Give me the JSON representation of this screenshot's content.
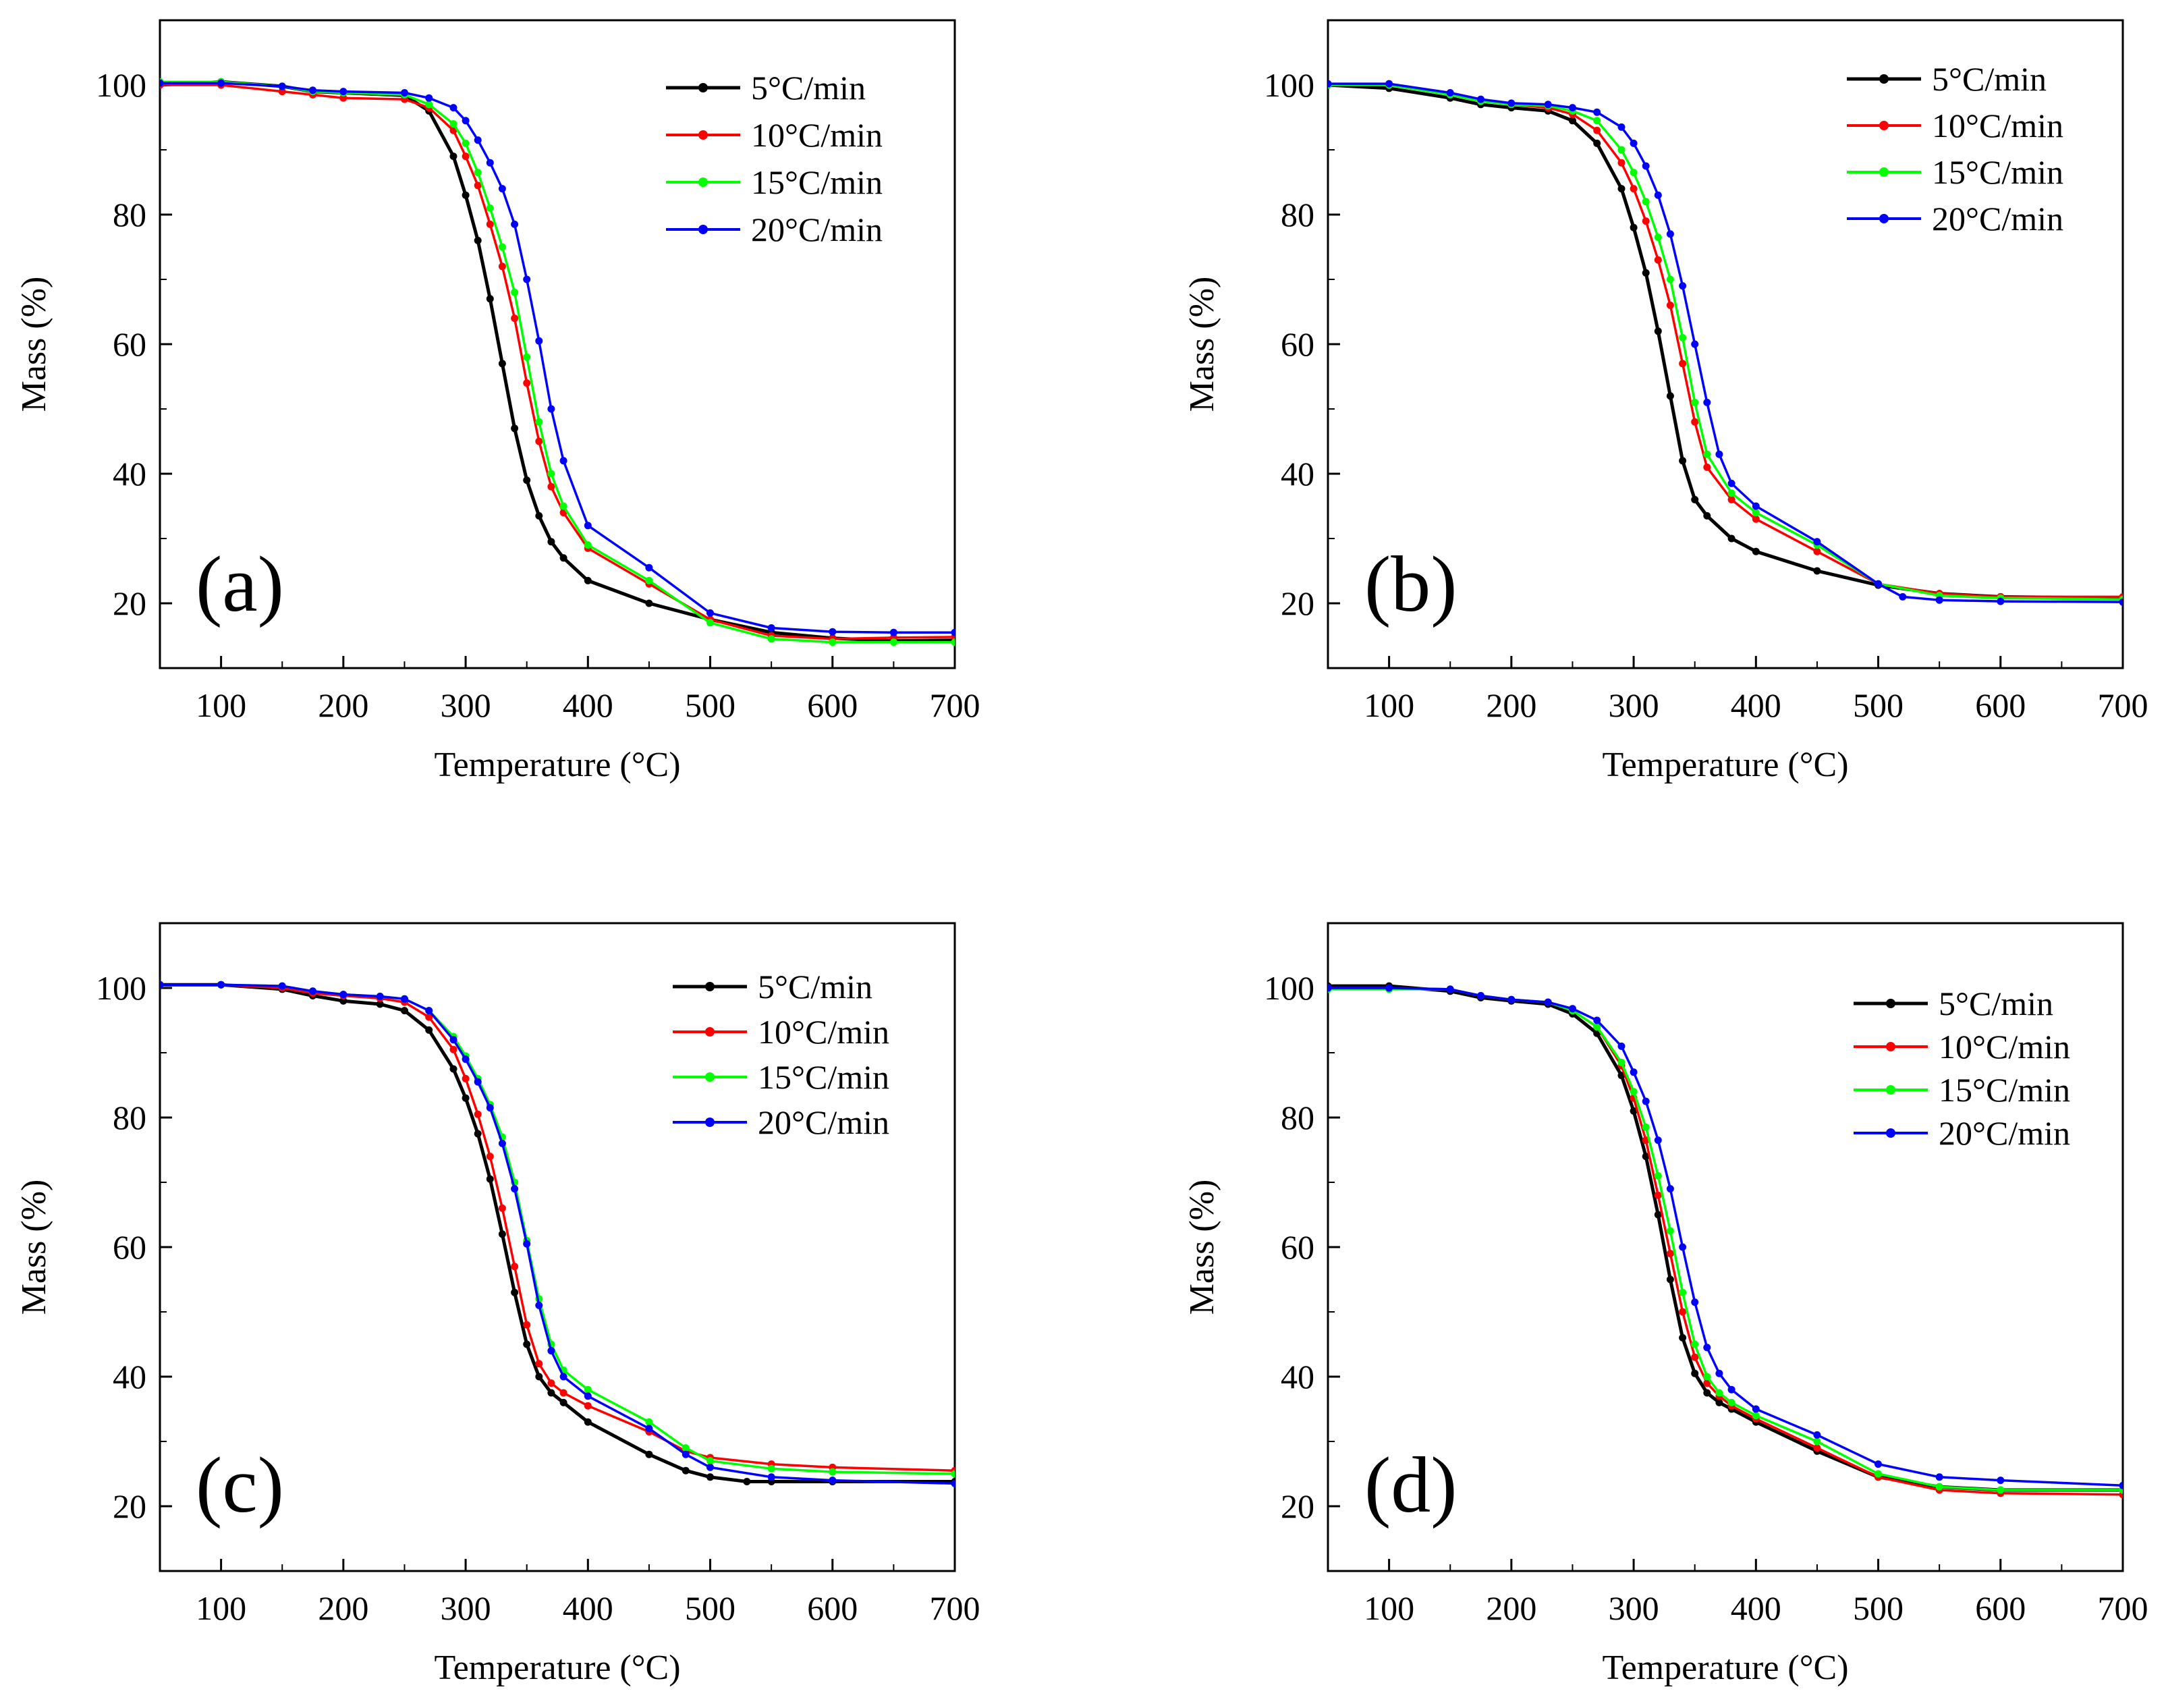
{
  "figure": {
    "panels": [
      "a",
      "b",
      "c",
      "d"
    ]
  },
  "chart_data": [
    {
      "panel_label": "(a)",
      "type": "line",
      "xlabel": "Temperature (°C)",
      "ylabel": "Mass (%)",
      "xlim": [
        50,
        700
      ],
      "ylim": [
        10,
        110
      ],
      "xticks": [
        "100",
        "200",
        "300",
        "400",
        "500",
        "600",
        "700"
      ],
      "yticks": [
        "20",
        "40",
        "60",
        "80",
        "100"
      ],
      "legend_position": "top-right",
      "series": [
        {
          "name": "5°C/min",
          "color": "#000000",
          "x": [
            50,
            100,
            150,
            175,
            200,
            250,
            270,
            290,
            300,
            310,
            320,
            330,
            340,
            350,
            360,
            370,
            380,
            400,
            450,
            500,
            550,
            600,
            650,
            700
          ],
          "y": [
            100,
            100.5,
            99.8,
            99,
            98.8,
            98.4,
            96,
            89,
            83,
            76,
            67,
            57,
            47,
            39,
            33.5,
            29.5,
            27,
            23.5,
            20,
            17.5,
            15.5,
            14.6,
            14.2,
            14.3
          ]
        },
        {
          "name": "10°C/min",
          "color": "#ff0000",
          "x": [
            50,
            100,
            150,
            175,
            200,
            250,
            270,
            290,
            300,
            310,
            320,
            330,
            340,
            350,
            360,
            370,
            380,
            400,
            450,
            500,
            550,
            600,
            650,
            700
          ],
          "y": [
            100,
            100,
            99,
            98.5,
            98,
            97.8,
            96.5,
            93,
            89,
            84.5,
            78.5,
            72,
            64,
            54,
            45,
            38,
            34,
            28.5,
            23,
            17.5,
            15,
            14.5,
            14.7,
            14.8
          ]
        },
        {
          "name": "15°C/min",
          "color": "#00ff00",
          "x": [
            50,
            100,
            150,
            175,
            200,
            250,
            270,
            290,
            300,
            310,
            320,
            330,
            340,
            350,
            360,
            370,
            380,
            400,
            450,
            500,
            550,
            600,
            650,
            700
          ],
          "y": [
            100.5,
            100.5,
            99.8,
            99,
            98.8,
            98.5,
            97,
            94,
            91,
            86.5,
            81,
            75,
            68,
            58,
            48,
            40,
            35,
            29,
            23.5,
            17,
            14.5,
            14,
            14,
            14
          ]
        },
        {
          "name": "20°C/min",
          "color": "#0000ff",
          "x": [
            50,
            100,
            150,
            175,
            200,
            250,
            270,
            290,
            300,
            310,
            320,
            330,
            340,
            350,
            360,
            370,
            380,
            400,
            450,
            500,
            550,
            600,
            650,
            700
          ],
          "y": [
            100.3,
            100.3,
            99.8,
            99.2,
            99,
            98.8,
            98,
            96.5,
            94.5,
            91.5,
            88,
            84,
            78.5,
            70,
            60.5,
            50,
            42,
            32,
            25.5,
            18.5,
            16.2,
            15.6,
            15.5,
            15.5
          ]
        }
      ]
    },
    {
      "panel_label": "(b)",
      "type": "line",
      "xlabel": "Temperature (°C)",
      "ylabel": "Mass (%)",
      "xlim": [
        50,
        700
      ],
      "ylim": [
        10,
        110
      ],
      "xticks": [
        "100",
        "200",
        "300",
        "400",
        "500",
        "600",
        "700"
      ],
      "yticks": [
        "20",
        "40",
        "60",
        "80",
        "100"
      ],
      "legend_position": "top-right",
      "series": [
        {
          "name": "5°C/min",
          "color": "#000000",
          "x": [
            50,
            100,
            150,
            175,
            200,
            230,
            250,
            270,
            290,
            300,
            310,
            320,
            330,
            340,
            350,
            360,
            380,
            400,
            450,
            500,
            550,
            600,
            700
          ],
          "y": [
            100,
            99.5,
            98,
            97,
            96.5,
            96,
            94.5,
            91,
            84,
            78,
            71,
            62,
            52,
            42,
            36,
            33.5,
            30,
            28,
            25,
            22.8,
            21.5,
            21,
            20.8
          ]
        },
        {
          "name": "10°C/min",
          "color": "#ff0000",
          "x": [
            50,
            100,
            150,
            175,
            200,
            230,
            250,
            270,
            290,
            300,
            310,
            320,
            330,
            340,
            350,
            360,
            380,
            400,
            450,
            500,
            550,
            600,
            700
          ],
          "y": [
            100,
            100,
            98.5,
            97.5,
            97,
            96.5,
            95.5,
            93,
            88,
            84,
            79,
            73,
            66,
            57,
            48,
            41,
            36,
            33,
            28,
            23,
            21.5,
            21,
            21
          ]
        },
        {
          "name": "15°C/min",
          "color": "#00ff00",
          "x": [
            50,
            100,
            150,
            175,
            200,
            230,
            250,
            270,
            290,
            300,
            310,
            320,
            330,
            340,
            350,
            360,
            380,
            400,
            450,
            500,
            550,
            600,
            700
          ],
          "y": [
            100,
            100,
            98.5,
            97.5,
            97,
            96.8,
            96,
            94.5,
            90,
            86.5,
            82,
            76.5,
            70,
            61,
            51,
            43,
            37,
            34,
            29,
            23,
            21.2,
            20.8,
            20.6
          ]
        },
        {
          "name": "20°C/min",
          "color": "#0000ff",
          "x": [
            50,
            100,
            150,
            175,
            200,
            230,
            250,
            270,
            290,
            300,
            310,
            320,
            330,
            340,
            350,
            360,
            370,
            380,
            400,
            450,
            500,
            520,
            550,
            600,
            700
          ],
          "y": [
            100.2,
            100.2,
            98.8,
            97.8,
            97.2,
            97,
            96.5,
            95.8,
            93.5,
            91,
            87.5,
            83,
            77,
            69,
            60,
            51,
            43,
            38.5,
            35,
            29.5,
            23,
            21,
            20.5,
            20.3,
            20.2
          ]
        }
      ]
    },
    {
      "panel_label": "(c)",
      "type": "line",
      "xlabel": "Temperature (°C)",
      "ylabel": "Mass (%)",
      "xlim": [
        50,
        700
      ],
      "ylim": [
        10,
        110
      ],
      "xticks": [
        "100",
        "200",
        "300",
        "400",
        "500",
        "600",
        "700"
      ],
      "yticks": [
        "20",
        "40",
        "60",
        "80",
        "100"
      ],
      "legend_position": "top-right",
      "series": [
        {
          "name": "5°C/min",
          "color": "#000000",
          "x": [
            50,
            100,
            150,
            175,
            200,
            230,
            250,
            270,
            290,
            300,
            310,
            320,
            330,
            340,
            350,
            360,
            370,
            380,
            400,
            450,
            480,
            500,
            530,
            550,
            600,
            700
          ],
          "y": [
            100.5,
            100.5,
            99.8,
            98.8,
            98,
            97.5,
            96.5,
            93.5,
            87.5,
            83,
            77.5,
            70.5,
            62,
            53,
            45,
            40,
            37.5,
            36,
            33,
            28,
            25.5,
            24.5,
            23.8,
            23.8,
            23.8,
            23.8
          ]
        },
        {
          "name": "10°C/min",
          "color": "#ff0000",
          "x": [
            50,
            100,
            150,
            175,
            200,
            230,
            250,
            270,
            290,
            300,
            310,
            320,
            330,
            340,
            350,
            360,
            370,
            380,
            400,
            450,
            480,
            500,
            550,
            600,
            700
          ],
          "y": [
            100.5,
            100.5,
            100,
            99.2,
            98.8,
            98.4,
            97.8,
            95.5,
            90.5,
            86,
            80.5,
            74,
            66,
            57,
            48,
            42,
            39,
            37.5,
            35.5,
            31.5,
            28.5,
            27.5,
            26.5,
            26,
            25.5
          ]
        },
        {
          "name": "15°C/min",
          "color": "#00ff00",
          "x": [
            50,
            100,
            150,
            175,
            200,
            230,
            250,
            270,
            290,
            300,
            310,
            320,
            330,
            340,
            350,
            360,
            370,
            380,
            400,
            450,
            480,
            500,
            550,
            600,
            700
          ],
          "y": [
            100.5,
            100.5,
            100.3,
            99.5,
            99,
            98.7,
            98.3,
            96.5,
            92.5,
            89.5,
            86,
            82,
            77,
            70,
            61,
            52,
            45,
            41,
            38,
            33,
            29,
            27,
            25.8,
            25.3,
            25
          ]
        },
        {
          "name": "20°C/min",
          "color": "#0000ff",
          "x": [
            50,
            100,
            150,
            175,
            200,
            230,
            250,
            270,
            290,
            300,
            310,
            320,
            330,
            340,
            350,
            360,
            370,
            380,
            400,
            450,
            480,
            500,
            550,
            600,
            700
          ],
          "y": [
            100.5,
            100.5,
            100.3,
            99.5,
            99,
            98.7,
            98.3,
            96.5,
            92,
            89,
            85.5,
            81.5,
            76,
            69,
            60.5,
            51,
            44,
            40,
            37,
            32,
            28,
            26,
            24.5,
            24,
            23.5
          ]
        }
      ]
    },
    {
      "panel_label": "(d)",
      "type": "line",
      "xlabel": "Temperature (°C)",
      "ylabel": "Mass (%)",
      "xlim": [
        50,
        700
      ],
      "ylim": [
        10,
        110
      ],
      "xticks": [
        "100",
        "200",
        "300",
        "400",
        "500",
        "600",
        "700"
      ],
      "yticks": [
        "20",
        "40",
        "60",
        "80",
        "100"
      ],
      "legend_position": "top-right",
      "series": [
        {
          "name": "5°C/min",
          "color": "#000000",
          "x": [
            50,
            100,
            150,
            175,
            200,
            230,
            250,
            270,
            290,
            300,
            310,
            320,
            330,
            340,
            350,
            360,
            370,
            380,
            400,
            450,
            500,
            550,
            600,
            700
          ],
          "y": [
            100.3,
            100.3,
            99.5,
            98.5,
            98,
            97.5,
            96,
            93,
            86.5,
            81,
            74,
            65,
            55,
            46,
            40.5,
            37.5,
            36,
            35,
            33,
            28.5,
            24.5,
            23,
            22.5,
            22.5
          ]
        },
        {
          "name": "10°C/min",
          "color": "#ff0000",
          "x": [
            50,
            100,
            150,
            175,
            200,
            230,
            250,
            270,
            290,
            300,
            310,
            320,
            330,
            340,
            350,
            360,
            370,
            380,
            400,
            450,
            500,
            550,
            600,
            700
          ],
          "y": [
            100,
            100,
            99.8,
            98.8,
            98.2,
            97.8,
            96.5,
            94,
            88,
            83,
            76.5,
            68,
            59,
            50,
            43,
            39,
            37,
            35.5,
            33.5,
            29,
            24.5,
            22.5,
            22,
            21.8
          ]
        },
        {
          "name": "15°C/min",
          "color": "#00ff00",
          "x": [
            50,
            100,
            150,
            175,
            200,
            230,
            250,
            270,
            290,
            300,
            310,
            320,
            330,
            340,
            350,
            360,
            370,
            380,
            400,
            450,
            500,
            550,
            600,
            700
          ],
          "y": [
            99.8,
            99.8,
            99.8,
            98.8,
            98.2,
            97.8,
            96.5,
            94,
            88.5,
            84,
            78.5,
            71,
            62.5,
            53,
            45,
            40,
            37.5,
            36,
            34,
            30,
            25,
            23,
            22.5,
            22.5
          ]
        },
        {
          "name": "20°C/min",
          "color": "#0000ff",
          "x": [
            50,
            100,
            150,
            175,
            200,
            230,
            250,
            270,
            290,
            300,
            310,
            320,
            330,
            340,
            350,
            360,
            370,
            380,
            400,
            450,
            500,
            550,
            600,
            700
          ],
          "y": [
            100,
            100,
            99.8,
            98.8,
            98.2,
            97.8,
            96.8,
            95,
            91,
            87,
            82.5,
            76.5,
            69,
            60,
            51.5,
            44.5,
            40.5,
            38,
            35,
            31,
            26.5,
            24.5,
            24,
            23.2
          ]
        }
      ]
    }
  ]
}
